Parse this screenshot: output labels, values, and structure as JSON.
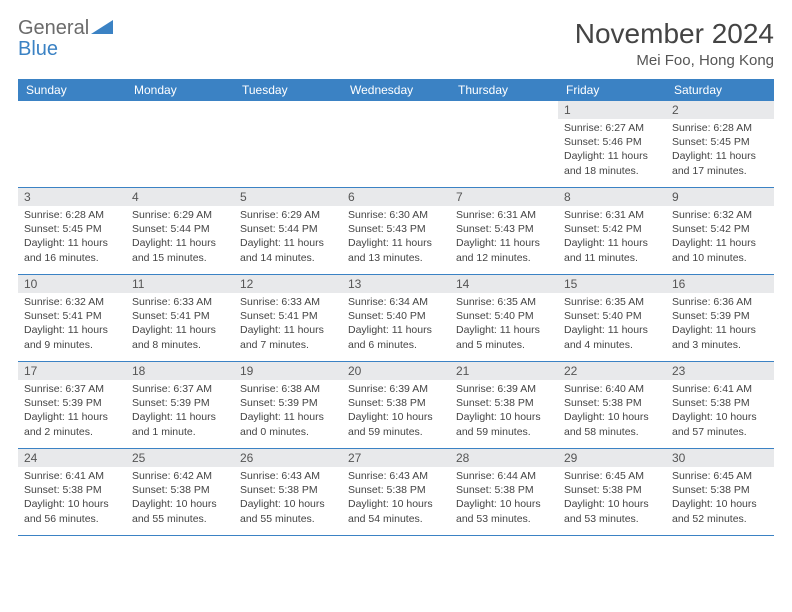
{
  "brand": {
    "part1": "General",
    "part2": "Blue"
  },
  "title": "November 2024",
  "location": "Mei Foo, Hong Kong",
  "colors": {
    "header_bg": "#3b82c4",
    "daynum_bg": "#e8e9eb",
    "border": "#3b82c4",
    "text": "#444444",
    "logo_gray": "#6b6b6b",
    "logo_blue": "#3b82c4"
  },
  "typography": {
    "title_fontsize": 28,
    "location_fontsize": 15,
    "dayheader_fontsize": 12,
    "daynum_fontsize": 12,
    "daytext_fontsize": 10.5
  },
  "layout": {
    "columns": 7,
    "rows": 5,
    "cell_min_height": 86
  },
  "dayheaders": [
    "Sunday",
    "Monday",
    "Tuesday",
    "Wednesday",
    "Thursday",
    "Friday",
    "Saturday"
  ],
  "weeks": [
    [
      {
        "n": "",
        "sr": "",
        "ss": "",
        "dl": "",
        "empty": true
      },
      {
        "n": "",
        "sr": "",
        "ss": "",
        "dl": "",
        "empty": true
      },
      {
        "n": "",
        "sr": "",
        "ss": "",
        "dl": "",
        "empty": true
      },
      {
        "n": "",
        "sr": "",
        "ss": "",
        "dl": "",
        "empty": true
      },
      {
        "n": "",
        "sr": "",
        "ss": "",
        "dl": "",
        "empty": true
      },
      {
        "n": "1",
        "sr": "Sunrise: 6:27 AM",
        "ss": "Sunset: 5:46 PM",
        "dl": "Daylight: 11 hours and 18 minutes."
      },
      {
        "n": "2",
        "sr": "Sunrise: 6:28 AM",
        "ss": "Sunset: 5:45 PM",
        "dl": "Daylight: 11 hours and 17 minutes."
      }
    ],
    [
      {
        "n": "3",
        "sr": "Sunrise: 6:28 AM",
        "ss": "Sunset: 5:45 PM",
        "dl": "Daylight: 11 hours and 16 minutes."
      },
      {
        "n": "4",
        "sr": "Sunrise: 6:29 AM",
        "ss": "Sunset: 5:44 PM",
        "dl": "Daylight: 11 hours and 15 minutes."
      },
      {
        "n": "5",
        "sr": "Sunrise: 6:29 AM",
        "ss": "Sunset: 5:44 PM",
        "dl": "Daylight: 11 hours and 14 minutes."
      },
      {
        "n": "6",
        "sr": "Sunrise: 6:30 AM",
        "ss": "Sunset: 5:43 PM",
        "dl": "Daylight: 11 hours and 13 minutes."
      },
      {
        "n": "7",
        "sr": "Sunrise: 6:31 AM",
        "ss": "Sunset: 5:43 PM",
        "dl": "Daylight: 11 hours and 12 minutes."
      },
      {
        "n": "8",
        "sr": "Sunrise: 6:31 AM",
        "ss": "Sunset: 5:42 PM",
        "dl": "Daylight: 11 hours and 11 minutes."
      },
      {
        "n": "9",
        "sr": "Sunrise: 6:32 AM",
        "ss": "Sunset: 5:42 PM",
        "dl": "Daylight: 11 hours and 10 minutes."
      }
    ],
    [
      {
        "n": "10",
        "sr": "Sunrise: 6:32 AM",
        "ss": "Sunset: 5:41 PM",
        "dl": "Daylight: 11 hours and 9 minutes."
      },
      {
        "n": "11",
        "sr": "Sunrise: 6:33 AM",
        "ss": "Sunset: 5:41 PM",
        "dl": "Daylight: 11 hours and 8 minutes."
      },
      {
        "n": "12",
        "sr": "Sunrise: 6:33 AM",
        "ss": "Sunset: 5:41 PM",
        "dl": "Daylight: 11 hours and 7 minutes."
      },
      {
        "n": "13",
        "sr": "Sunrise: 6:34 AM",
        "ss": "Sunset: 5:40 PM",
        "dl": "Daylight: 11 hours and 6 minutes."
      },
      {
        "n": "14",
        "sr": "Sunrise: 6:35 AM",
        "ss": "Sunset: 5:40 PM",
        "dl": "Daylight: 11 hours and 5 minutes."
      },
      {
        "n": "15",
        "sr": "Sunrise: 6:35 AM",
        "ss": "Sunset: 5:40 PM",
        "dl": "Daylight: 11 hours and 4 minutes."
      },
      {
        "n": "16",
        "sr": "Sunrise: 6:36 AM",
        "ss": "Sunset: 5:39 PM",
        "dl": "Daylight: 11 hours and 3 minutes."
      }
    ],
    [
      {
        "n": "17",
        "sr": "Sunrise: 6:37 AM",
        "ss": "Sunset: 5:39 PM",
        "dl": "Daylight: 11 hours and 2 minutes."
      },
      {
        "n": "18",
        "sr": "Sunrise: 6:37 AM",
        "ss": "Sunset: 5:39 PM",
        "dl": "Daylight: 11 hours and 1 minute."
      },
      {
        "n": "19",
        "sr": "Sunrise: 6:38 AM",
        "ss": "Sunset: 5:39 PM",
        "dl": "Daylight: 11 hours and 0 minutes."
      },
      {
        "n": "20",
        "sr": "Sunrise: 6:39 AM",
        "ss": "Sunset: 5:38 PM",
        "dl": "Daylight: 10 hours and 59 minutes."
      },
      {
        "n": "21",
        "sr": "Sunrise: 6:39 AM",
        "ss": "Sunset: 5:38 PM",
        "dl": "Daylight: 10 hours and 59 minutes."
      },
      {
        "n": "22",
        "sr": "Sunrise: 6:40 AM",
        "ss": "Sunset: 5:38 PM",
        "dl": "Daylight: 10 hours and 58 minutes."
      },
      {
        "n": "23",
        "sr": "Sunrise: 6:41 AM",
        "ss": "Sunset: 5:38 PM",
        "dl": "Daylight: 10 hours and 57 minutes."
      }
    ],
    [
      {
        "n": "24",
        "sr": "Sunrise: 6:41 AM",
        "ss": "Sunset: 5:38 PM",
        "dl": "Daylight: 10 hours and 56 minutes."
      },
      {
        "n": "25",
        "sr": "Sunrise: 6:42 AM",
        "ss": "Sunset: 5:38 PM",
        "dl": "Daylight: 10 hours and 55 minutes."
      },
      {
        "n": "26",
        "sr": "Sunrise: 6:43 AM",
        "ss": "Sunset: 5:38 PM",
        "dl": "Daylight: 10 hours and 55 minutes."
      },
      {
        "n": "27",
        "sr": "Sunrise: 6:43 AM",
        "ss": "Sunset: 5:38 PM",
        "dl": "Daylight: 10 hours and 54 minutes."
      },
      {
        "n": "28",
        "sr": "Sunrise: 6:44 AM",
        "ss": "Sunset: 5:38 PM",
        "dl": "Daylight: 10 hours and 53 minutes."
      },
      {
        "n": "29",
        "sr": "Sunrise: 6:45 AM",
        "ss": "Sunset: 5:38 PM",
        "dl": "Daylight: 10 hours and 53 minutes."
      },
      {
        "n": "30",
        "sr": "Sunrise: 6:45 AM",
        "ss": "Sunset: 5:38 PM",
        "dl": "Daylight: 10 hours and 52 minutes."
      }
    ]
  ]
}
